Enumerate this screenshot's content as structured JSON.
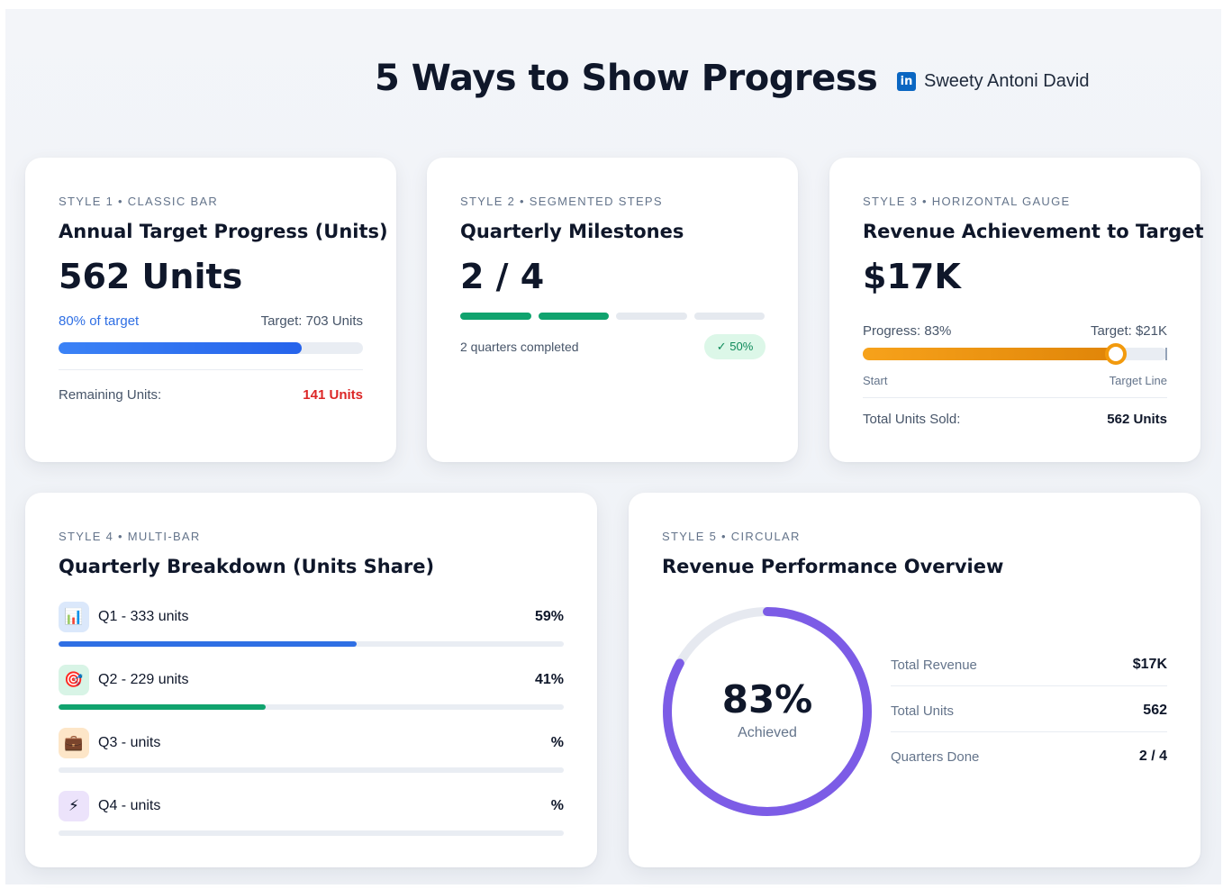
{
  "header": {
    "title": "5 Ways to Show Progress",
    "author_icon": "in",
    "author": "Sweety Antoni David"
  },
  "colors": {
    "blue": "#2f6fe4",
    "green": "#10a36e",
    "orange": "#f29a0d",
    "purple": "#7c5ce6",
    "red": "#dc2626"
  },
  "card1": {
    "eyebrow": "STYLE 1 • CLASSIC BAR",
    "title": "Annual Target Progress (Units)",
    "value": "562 Units",
    "pct_label": "80% of target",
    "target_label": "Target: 703 Units",
    "progress": 0.8,
    "remaining_label": "Remaining Units:",
    "remaining_value": "141 Units"
  },
  "card2": {
    "eyebrow": "STYLE 2 • SEGMENTED STEPS",
    "title": "Quarterly Milestones",
    "value": "2 / 4",
    "completed_segments": 2,
    "total_segments": 4,
    "status": "2 quarters completed",
    "badge": "✓ 50%"
  },
  "card3": {
    "eyebrow": "STYLE 3 • HORIZONTAL GAUGE",
    "title": "Revenue Achievement to Target",
    "value": "$17K",
    "progress_label": "Progress: 83%",
    "target_label": "Target: $21K",
    "progress": 0.83,
    "start_label": "Start",
    "end_label": "Target Line",
    "footer_label": "Total Units Sold:",
    "footer_value": "562 Units"
  },
  "card4": {
    "eyebrow": "STYLE 4 • MULTI-BAR",
    "title": "Quarterly Breakdown (Units Share)",
    "rows": [
      {
        "icon": "bar-chart-icon",
        "glyph": "📊",
        "label": "Q1 - 333 units",
        "pct": "59%",
        "value": 0.59,
        "color": "#2f6fe4",
        "bg": "#dbe8fb"
      },
      {
        "icon": "target-icon",
        "glyph": "🎯",
        "label": "Q2 - 229 units",
        "pct": "41%",
        "value": 0.41,
        "color": "#10a36e",
        "bg": "#d8f4e6"
      },
      {
        "icon": "briefcase-icon",
        "glyph": "💼",
        "label": "Q3 - units",
        "pct": "%",
        "value": 0,
        "color": "#f29a0d",
        "bg": "#fde6c8"
      },
      {
        "icon": "lightning-icon",
        "glyph": "⚡",
        "label": "Q4 - units",
        "pct": "%",
        "value": 0,
        "color": "#7c5ce6",
        "bg": "#ece3fb"
      }
    ]
  },
  "card5": {
    "eyebrow": "STYLE 5 • CIRCULAR",
    "title": "Revenue Performance Overview",
    "ring_value": "83%",
    "ring_label": "Achieved",
    "progress": 0.83,
    "stats": [
      {
        "label": "Total Revenue",
        "value": "$17K"
      },
      {
        "label": "Total Units",
        "value": "562"
      },
      {
        "label": "Quarters Done",
        "value": "2 / 4"
      }
    ]
  }
}
